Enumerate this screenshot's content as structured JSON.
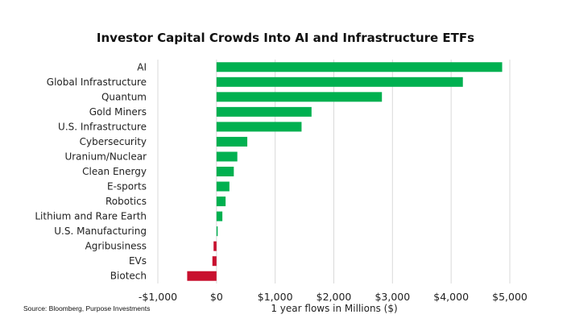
{
  "chart_data": {
    "type": "bar",
    "orientation": "horizontal",
    "title": "Investor Capital Crowds Into AI and Infrastructure ETFs",
    "xlabel": "1 year flows in Millions ($)",
    "ylabel": "",
    "xlim": [
      -1000,
      5000
    ],
    "xticks": [
      -1000,
      0,
      1000,
      2000,
      3000,
      4000,
      5000
    ],
    "xtick_labels": [
      "-$1,000",
      "$0",
      "$1,000",
      "$2,000",
      "$3,000",
      "$4,000",
      "$5,000"
    ],
    "grid": "vertical",
    "categories": [
      "AI",
      "Global Infrastructure",
      "Quantum",
      "Gold Miners",
      "U.S. Infrastructure",
      "Cybersecurity",
      "Uranium/Nuclear",
      "Clean Energy",
      "E-sports",
      "Robotics",
      "Lithium and Rare Earth",
      "U.S. Manufacturing",
      "Agribusiness",
      "EVs",
      "Biotech"
    ],
    "values": [
      4870,
      4200,
      2820,
      1620,
      1450,
      525,
      355,
      295,
      220,
      155,
      100,
      20,
      -50,
      -70,
      -500
    ],
    "colors": {
      "positive": "#00b050",
      "negative": "#c8102e",
      "grid": "#d9d9d9"
    },
    "source": "Source: Bloomberg, Purpose Investments"
  }
}
